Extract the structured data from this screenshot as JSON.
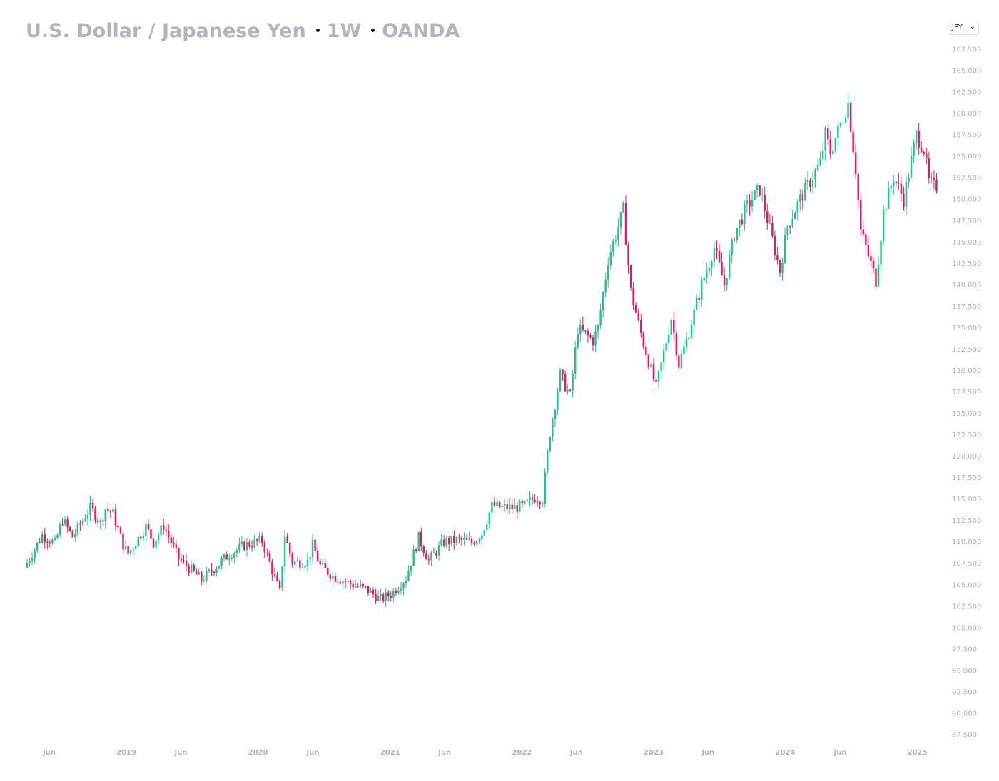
{
  "header": {
    "symbol": "U.S. Dollar / Japanese Yen",
    "interval": "1W",
    "source": "OANDA"
  },
  "currency_selector": {
    "value": "JPY"
  },
  "colors": {
    "up": "#26c28b",
    "down": "#e5195d",
    "axis_text": "#b2b5be"
  },
  "chart_data": {
    "type": "candlestick",
    "title": "U.S. Dollar / Japanese Yen",
    "ylim": [
      86.0,
      169.5
    ],
    "y_ticks": [
      "87.500",
      "90.000",
      "92.500",
      "95.000",
      "97.500",
      "100.000",
      "102.500",
      "105.000",
      "107.500",
      "110.000",
      "112.500",
      "115.000",
      "117.500",
      "120.000",
      "122.500",
      "125.000",
      "127.500",
      "130.000",
      "132.500",
      "135.000",
      "137.500",
      "140.000",
      "142.500",
      "145.000",
      "147.500",
      "150.000",
      "152.500",
      "155.000",
      "157.500",
      "160.000",
      "162.500",
      "165.000",
      "167.500"
    ],
    "x_range": [
      "2018-04-01",
      "2025-03-02"
    ],
    "x_ticks": [
      {
        "label": "Jun",
        "date": "2018-06-01"
      },
      {
        "label": "2019",
        "date": "2019-01-01"
      },
      {
        "label": "Jun",
        "date": "2019-06-01"
      },
      {
        "label": "2020",
        "date": "2020-01-01"
      },
      {
        "label": "Jun",
        "date": "2020-06-01"
      },
      {
        "label": "2021",
        "date": "2021-01-01"
      },
      {
        "label": "Jun",
        "date": "2021-06-01"
      },
      {
        "label": "2022",
        "date": "2022-01-01"
      },
      {
        "label": "Jun",
        "date": "2022-06-01"
      },
      {
        "label": "2023",
        "date": "2023-01-01"
      },
      {
        "label": "Jun",
        "date": "2023-06-01"
      },
      {
        "label": "2024",
        "date": "2024-01-01"
      },
      {
        "label": "Jun",
        "date": "2024-06-01"
      },
      {
        "label": "2025",
        "date": "2025-01-01"
      }
    ],
    "weekly_close_path": [
      [
        "2018-04-01",
        107.0
      ],
      [
        "2018-05-20",
        110.8
      ],
      [
        "2018-06-24",
        109.8
      ],
      [
        "2018-07-15",
        112.6
      ],
      [
        "2018-08-12",
        110.6
      ],
      [
        "2018-10-01",
        114.0
      ],
      [
        "2018-10-28",
        112.2
      ],
      [
        "2018-11-11",
        113.9
      ],
      [
        "2018-12-02",
        113.3
      ],
      [
        "2019-01-01",
        109.4
      ],
      [
        "2019-01-13",
        108.6
      ],
      [
        "2019-03-03",
        111.8
      ],
      [
        "2019-03-24",
        109.9
      ],
      [
        "2019-04-21",
        111.9
      ],
      [
        "2019-06-01",
        108.1
      ],
      [
        "2019-08-04",
        105.6
      ],
      [
        "2019-09-01",
        106.6
      ],
      [
        "2019-10-13",
        108.3
      ],
      [
        "2019-12-01",
        109.6
      ],
      [
        "2020-01-19",
        110.1
      ],
      [
        "2020-03-08",
        104.1
      ],
      [
        "2020-03-22",
        110.8
      ],
      [
        "2020-04-12",
        107.6
      ],
      [
        "2020-05-24",
        107.7
      ],
      [
        "2020-06-07",
        109.6
      ],
      [
        "2020-06-28",
        107.2
      ],
      [
        "2020-08-02",
        106.0
      ],
      [
        "2020-09-20",
        105.1
      ],
      [
        "2020-11-01",
        104.5
      ],
      [
        "2020-12-13",
        103.3
      ],
      [
        "2021-01-10",
        103.9
      ],
      [
        "2021-02-21",
        105.8
      ],
      [
        "2021-03-28",
        110.5
      ],
      [
        "2021-04-25",
        107.8
      ],
      [
        "2021-06-06",
        110.0
      ],
      [
        "2021-07-18",
        110.2
      ],
      [
        "2021-08-22",
        109.9
      ],
      [
        "2021-09-19",
        111.0
      ],
      [
        "2021-10-17",
        114.2
      ],
      [
        "2021-11-21",
        114.0
      ],
      [
        "2021-12-19",
        114.0
      ],
      [
        "2022-01-16",
        114.2
      ],
      [
        "2022-02-13",
        115.2
      ],
      [
        "2022-03-06",
        115.0
      ],
      [
        "2022-03-27",
        122.8
      ],
      [
        "2022-04-24",
        129.5
      ],
      [
        "2022-05-22",
        127.0
      ],
      [
        "2022-06-12",
        134.9
      ],
      [
        "2022-07-24",
        133.5
      ],
      [
        "2022-08-07",
        135.0
      ],
      [
        "2022-09-04",
        143.0
      ],
      [
        "2022-10-16",
        148.7
      ],
      [
        "2022-11-06",
        139.2
      ],
      [
        "2022-12-04",
        134.3
      ],
      [
        "2023-01-15",
        127.9
      ],
      [
        "2023-02-26",
        136.2
      ],
      [
        "2023-03-19",
        130.7
      ],
      [
        "2023-04-09",
        133.5
      ],
      [
        "2023-05-21",
        140.0
      ],
      [
        "2023-06-25",
        144.3
      ],
      [
        "2023-07-23",
        140.0
      ],
      [
        "2023-08-20",
        146.0
      ],
      [
        "2023-09-24",
        149.2
      ],
      [
        "2023-10-29",
        151.2
      ],
      [
        "2023-11-26",
        146.5
      ],
      [
        "2023-12-24",
        141.6
      ],
      [
        "2024-01-14",
        146.9
      ],
      [
        "2024-02-18",
        150.0
      ],
      [
        "2024-04-14",
        154.2
      ],
      [
        "2024-04-28",
        157.5
      ],
      [
        "2024-05-12",
        155.5
      ],
      [
        "2024-06-30",
        161.2
      ],
      [
        "2024-07-21",
        153.5
      ],
      [
        "2024-08-04",
        146.3
      ],
      [
        "2024-09-15",
        140.5
      ],
      [
        "2024-10-06",
        148.5
      ],
      [
        "2024-11-03",
        152.6
      ],
      [
        "2024-12-01",
        150.0
      ],
      [
        "2025-01-05",
        157.5
      ],
      [
        "2025-01-26",
        155.8
      ],
      [
        "2025-02-09",
        152.0
      ],
      [
        "2025-02-23",
        151.5
      ]
    ]
  }
}
